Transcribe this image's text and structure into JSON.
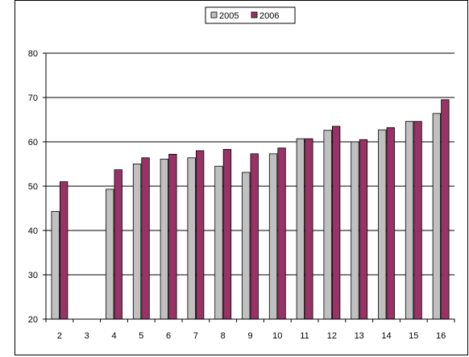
{
  "chart_data": {
    "type": "bar",
    "categories": [
      "2",
      "3",
      "4",
      "5",
      "6",
      "7",
      "8",
      "9",
      "10",
      "11",
      "12",
      "13",
      "14",
      "15",
      "16"
    ],
    "series": [
      {
        "name": "2005",
        "color": "#c0c0c0",
        "values": [
          44.3,
          null,
          49.3,
          55.0,
          56.1,
          56.4,
          54.5,
          53.1,
          57.3,
          60.7,
          62.6,
          60.0,
          62.7,
          64.6,
          66.4
        ]
      },
      {
        "name": "2006",
        "color": "#993366",
        "values": [
          51.0,
          null,
          53.7,
          56.4,
          57.2,
          58.0,
          58.3,
          57.3,
          58.6,
          60.7,
          63.5,
          60.5,
          63.2,
          64.6,
          69.5
        ]
      }
    ],
    "ylim": [
      20,
      80
    ],
    "yticks": [
      20,
      30,
      40,
      50,
      60,
      70,
      80
    ],
    "grid": true,
    "legend_position": "top-center",
    "title": "",
    "xlabel": "",
    "ylabel": ""
  }
}
